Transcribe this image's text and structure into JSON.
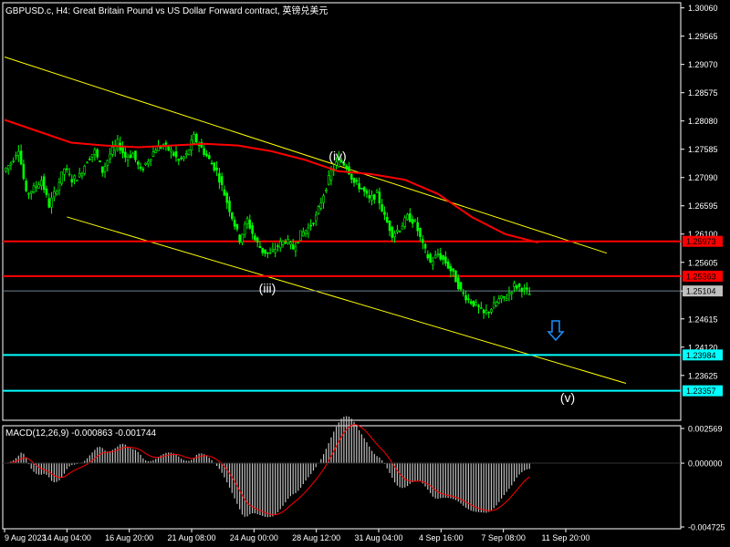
{
  "header": {
    "title": "GBPUSD.c, H4:  Great Britain Pound vs US Dollar Forward contract, 英镑兑美元"
  },
  "macd_header": {
    "title": "MACD(12,26,9) -0.000863 -0.001744"
  },
  "colors": {
    "background": "#000000",
    "candle": "#00ff00",
    "ma": "#ff0000",
    "channel": "#ffff00",
    "resistance": "#ff0000",
    "support": "#00ffff",
    "histogram": "#c0c0c0",
    "signal": "#ff0000",
    "arrow": "#1e90ff",
    "axis": "#ffffff"
  },
  "chart_data": {
    "type": "candlestick",
    "symbol": "GBPUSD.c",
    "timeframe": "H4",
    "price_axis": {
      "range": [
        1.2284,
        1.3015
      ],
      "ticks": [
        "1.30060",
        "1.29565",
        "1.29070",
        "1.28575",
        "1.28080",
        "1.27585",
        "1.27090",
        "1.26595",
        "1.26100",
        "1.25605",
        "1.25104",
        "1.24615",
        "1.24120",
        "1.23625"
      ]
    },
    "time_axis": {
      "labels": [
        "9 Aug 2023",
        "14 Aug 04:00",
        "16 Aug 20:00",
        "21 Aug 08:00",
        "24 Aug 00:00",
        "28 Aug 12:00",
        "31 Aug 04:00",
        "4 Sep 16:00",
        "7 Sep 08:00",
        "11 Sep 20:00"
      ]
    },
    "price_series": [
      1.272,
      1.2735,
      1.276,
      1.268,
      1.269,
      1.2705,
      1.266,
      1.269,
      1.2725,
      1.2705,
      1.2712,
      1.274,
      1.2755,
      1.272,
      1.275,
      1.277,
      1.2745,
      1.275,
      1.272,
      1.274,
      1.276,
      1.2765,
      1.2755,
      1.2738,
      1.2748,
      1.278,
      1.276,
      1.274,
      1.272,
      1.268,
      1.264,
      1.26,
      1.2635,
      1.26,
      1.258,
      1.2575,
      1.259,
      1.26,
      1.2585,
      1.261,
      1.262,
      1.264,
      1.268,
      1.272,
      1.274,
      1.273,
      1.27,
      1.269,
      1.267,
      1.268,
      1.264,
      1.261,
      1.262,
      1.264,
      1.263,
      1.259,
      1.256,
      1.2575,
      1.256,
      1.254,
      1.251,
      1.2495,
      1.2485,
      1.247,
      1.248,
      1.2495,
      1.25,
      1.252,
      1.2515,
      1.2505
    ],
    "moving_average": [
      1.281,
      1.279,
      1.277,
      1.2765,
      1.2762,
      1.2765,
      1.2768,
      1.2765,
      1.2755,
      1.274,
      1.272,
      1.2715,
      1.2705,
      1.268,
      1.264,
      1.261,
      1.2595
    ],
    "horizontal_levels": [
      {
        "price": 1.25973,
        "label": "1.25973",
        "role": "resistance"
      },
      {
        "price": 1.25363,
        "label": "1.25363",
        "role": "resistance"
      },
      {
        "price": 1.25104,
        "label": "1.25104",
        "role": "current"
      },
      {
        "price": 1.23984,
        "label": "1.23984",
        "role": "support"
      },
      {
        "price": 1.23357,
        "label": "1.23357",
        "role": "support"
      }
    ],
    "channel_lines": [
      {
        "from": [
          "9 Aug 2023",
          1.292
        ],
        "to": [
          "11 Sep 20:00",
          1.26
        ]
      },
      {
        "from": [
          "14 Aug 04:00",
          1.264
        ],
        "to": [
          "11 Sep 20:00",
          1.238
        ]
      }
    ],
    "annotations": [
      "(iii)",
      "(iv)",
      "(v)"
    ],
    "macd": {
      "params": "12,26,9",
      "value": -0.000863,
      "signal": -0.001744,
      "range": [
        -0.004725,
        0.002569
      ],
      "ticks": [
        "0.002569",
        "0.000000",
        "-0.004725"
      ]
    }
  }
}
